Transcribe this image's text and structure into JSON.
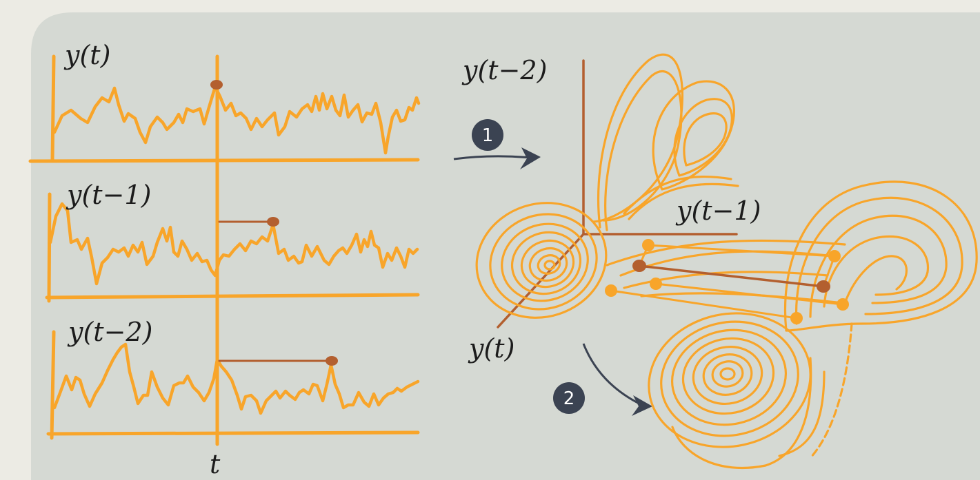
{
  "labels": {
    "series_0": "y(t)",
    "series_1": "y(t−1)",
    "series_2": "y(t−2)",
    "time_marker": "t",
    "axis_vertical": "y(t−2)",
    "axis_horizontal": "y(t−1)",
    "axis_diagonal": "y(t)"
  },
  "steps": {
    "step_1": "1",
    "step_2": "2"
  },
  "colors": {
    "background": "#ecebe4",
    "panel": "#d5d9d3",
    "signal": "#f8a52a",
    "accent": "#b35f2f",
    "badge": "#3b4352",
    "arrow": "#3b4352",
    "text": "#1c1c1c"
  }
}
